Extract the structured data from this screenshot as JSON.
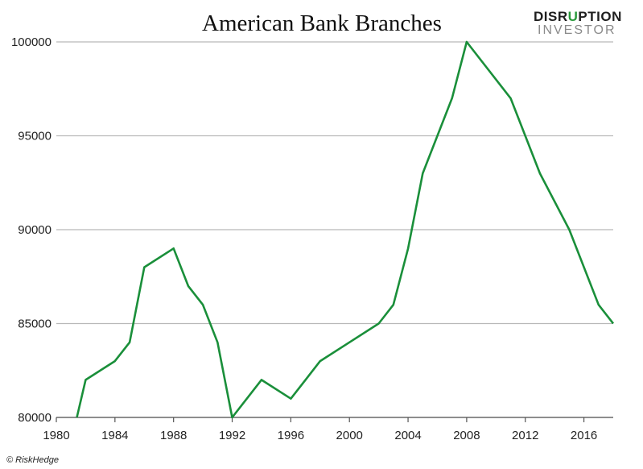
{
  "logo": {
    "line1_part1": "DISR",
    "line1_part2": "U",
    "line1_part3": "PTION",
    "line2": "INVESTOR"
  },
  "credit": "© RiskHedge",
  "colors": {
    "series": "#1a8f3a",
    "grid": "#b9b9b9",
    "logo_accent": "#2a9a3c"
  },
  "chart_data": {
    "type": "line",
    "title": "American Bank Branches",
    "xlabel": "",
    "ylabel": "",
    "xlim": [
      1980,
      2018
    ],
    "ylim": [
      80000,
      100000
    ],
    "x_ticks": [
      1980,
      1984,
      1988,
      1992,
      1996,
      2000,
      2004,
      2008,
      2012,
      2016
    ],
    "y_ticks": [
      80000,
      85000,
      90000,
      95000,
      100000
    ],
    "grid": "horizontal",
    "legend": "none",
    "series": [
      {
        "x": [
          1981.4,
          1982,
          1984,
          1985,
          1986,
          1988,
          1989,
          1990,
          1991,
          1992,
          1994,
          1996,
          1997,
          1998,
          2000,
          2002,
          2003,
          2004,
          2005,
          2006,
          2007,
          2008,
          2011,
          2013,
          2015,
          2017,
          2018
        ],
        "y": [
          80000,
          82000,
          83000,
          84000,
          88000,
          89000,
          87000,
          86000,
          84000,
          80000,
          82000,
          81000,
          82000,
          83000,
          84000,
          85000,
          86000,
          89000,
          93000,
          95000,
          97000,
          100000,
          97000,
          93000,
          90000,
          86000,
          85000
        ]
      }
    ]
  }
}
